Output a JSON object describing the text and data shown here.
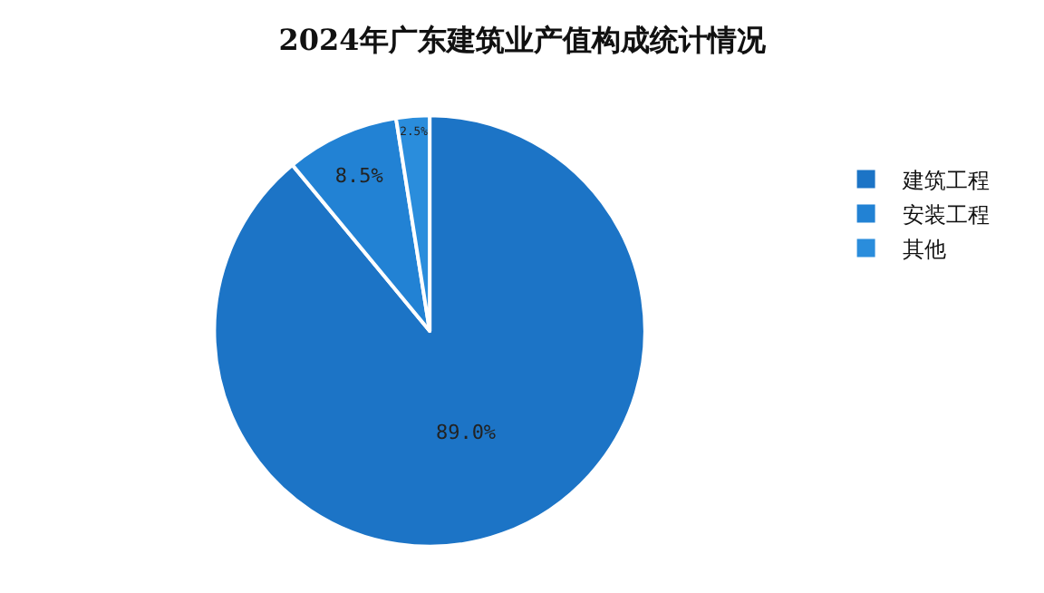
{
  "chart_data": {
    "type": "pie",
    "title": "2024年广东建筑业产值构成统计情况",
    "categories": [
      "建筑工程",
      "安装工程",
      "其他"
    ],
    "values": [
      89.0,
      8.5,
      2.5
    ],
    "value_labels": [
      "89.0%",
      "8.5%",
      "2.5%"
    ],
    "colors": [
      "#1c74c6",
      "#2282d4",
      "#2a8ddc"
    ],
    "legend": "right"
  }
}
